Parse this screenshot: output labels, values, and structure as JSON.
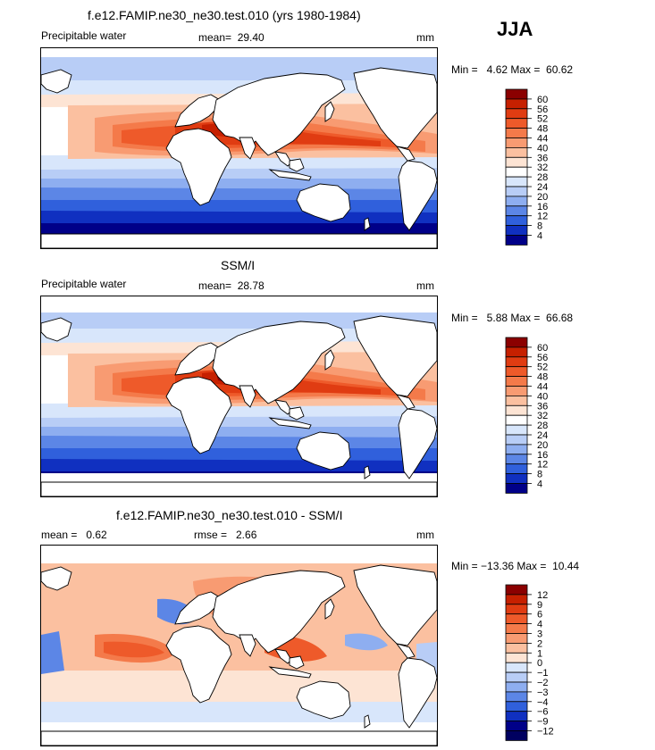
{
  "season": "JJA",
  "panels": [
    {
      "title": "f.e12.FAMIP.ne30_ne30.test.010 (yrs 1980-1984)",
      "left_label": "Precipitable water",
      "mid_label": "mean=  29.40",
      "right_label": "mm",
      "minmax": "Min =   4.62 Max =  60.62",
      "levels": [
        "60",
        "56",
        "52",
        "48",
        "44",
        "40",
        "36",
        "32",
        "28",
        "24",
        "20",
        "16",
        "12",
        "8",
        "4"
      ],
      "colors": [
        "#8b0000",
        "#c62000",
        "#e03c12",
        "#ee5a2a",
        "#f47a4a",
        "#f89b72",
        "#fbc0a0",
        "#fde4d4",
        "#ffffff",
        "#d8e6fb",
        "#b8cdf6",
        "#8eaef0",
        "#5c86e6",
        "#3060dc",
        "#1030c0",
        "#000088"
      ],
      "kind": "pw_model"
    },
    {
      "title": "SSM/I",
      "left_label": "Precipitable water",
      "mid_label": "mean=  28.78",
      "right_label": "mm",
      "minmax": "Min =   5.88 Max =  66.68",
      "levels": [
        "60",
        "56",
        "52",
        "48",
        "44",
        "40",
        "36",
        "32",
        "28",
        "24",
        "20",
        "16",
        "12",
        "8",
        "4"
      ],
      "colors": [
        "#8b0000",
        "#c62000",
        "#e03c12",
        "#ee5a2a",
        "#f47a4a",
        "#f89b72",
        "#fbc0a0",
        "#fde4d4",
        "#ffffff",
        "#d8e6fb",
        "#b8cdf6",
        "#8eaef0",
        "#5c86e6",
        "#3060dc",
        "#1030c0",
        "#000088"
      ],
      "kind": "pw_obs"
    },
    {
      "title": "f.e12.FAMIP.ne30_ne30.test.010 - SSM/I",
      "left_label": "mean =   0.62",
      "mid_label": "rmse =   2.66",
      "right_label": "mm",
      "minmax": "Min = −13.36 Max =  10.44",
      "levels": [
        "12",
        "9",
        "6",
        "4",
        "3",
        "2",
        "1",
        "0",
        "−1",
        "−2",
        "−3",
        "−4",
        "−6",
        "−9",
        "−12"
      ],
      "colors": [
        "#8b0000",
        "#c62000",
        "#e03c12",
        "#ee5a2a",
        "#f47a4a",
        "#f89b72",
        "#fbc0a0",
        "#fde4d4",
        "#d8e6fb",
        "#b8cdf6",
        "#8eaef0",
        "#5c86e6",
        "#3060dc",
        "#1030c0",
        "#000088",
        "#000060"
      ],
      "kind": "diff"
    }
  ],
  "chart_data": [
    {
      "type": "heatmap",
      "title": "f.e12.FAMIP.ne30_ne30.test.010 (yrs 1980-1984)",
      "variable": "Precipitable water",
      "units": "mm",
      "season": "JJA",
      "mean": 29.4,
      "min": 4.62,
      "max": 60.62,
      "contour_levels": [
        4,
        8,
        12,
        16,
        20,
        24,
        28,
        32,
        36,
        40,
        44,
        48,
        52,
        56,
        60
      ]
    },
    {
      "type": "heatmap",
      "title": "SSM/I",
      "variable": "Precipitable water",
      "units": "mm",
      "season": "JJA",
      "mean": 28.78,
      "min": 5.88,
      "max": 66.68,
      "contour_levels": [
        4,
        8,
        12,
        16,
        20,
        24,
        28,
        32,
        36,
        40,
        44,
        48,
        52,
        56,
        60
      ]
    },
    {
      "type": "heatmap",
      "title": "f.e12.FAMIP.ne30_ne30.test.010 - SSM/I",
      "units": "mm",
      "season": "JJA",
      "mean": 0.62,
      "rmse": 2.66,
      "min": -13.36,
      "max": 10.44,
      "contour_levels": [
        -12,
        -9,
        -6,
        -4,
        -3,
        -2,
        -1,
        0,
        1,
        2,
        3,
        4,
        6,
        9,
        12
      ]
    }
  ]
}
